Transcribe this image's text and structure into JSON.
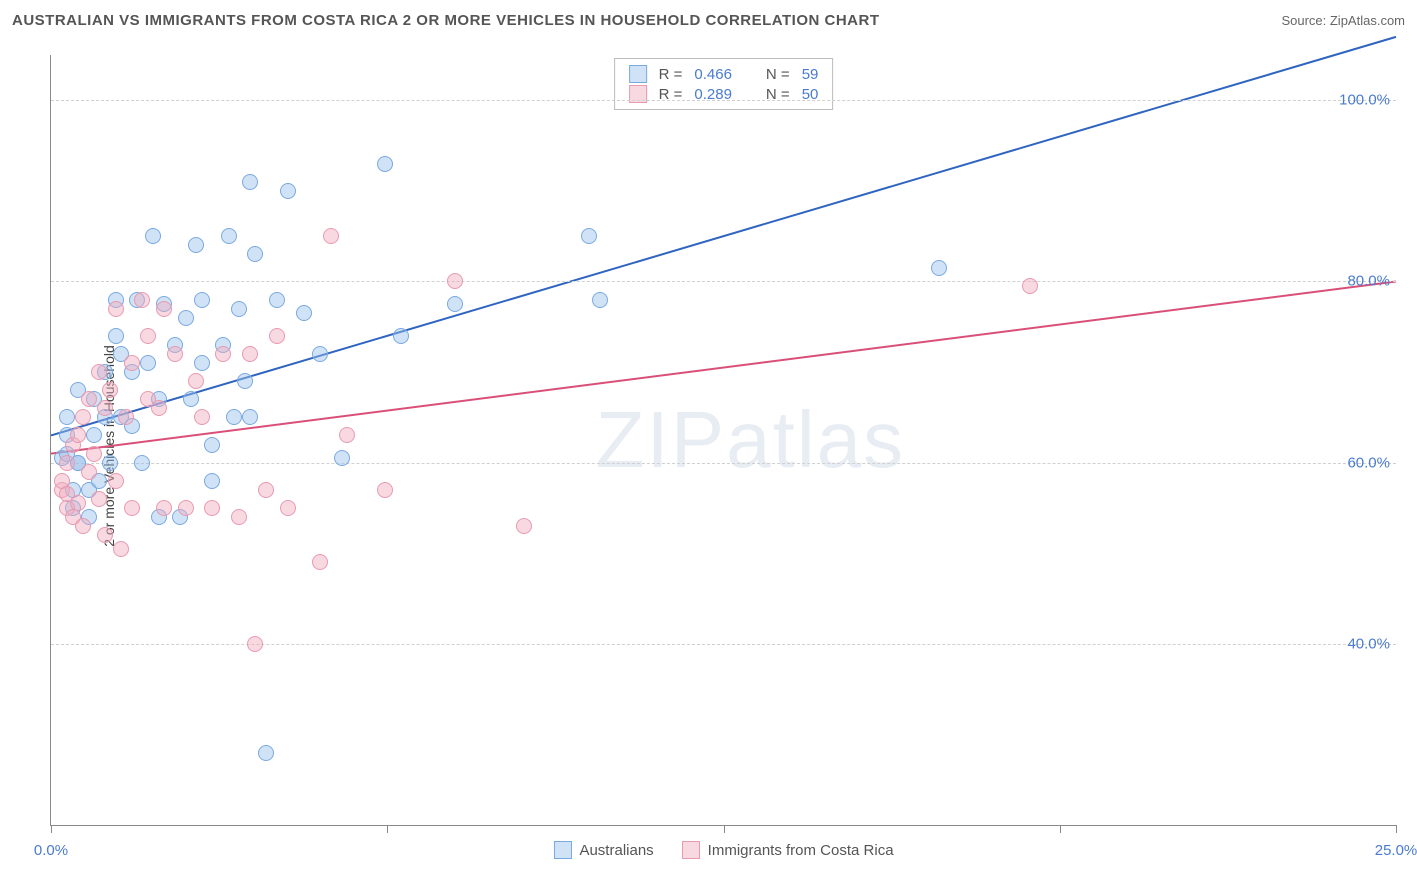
{
  "title": "AUSTRALIAN VS IMMIGRANTS FROM COSTA RICA 2 OR MORE VEHICLES IN HOUSEHOLD CORRELATION CHART",
  "source": "Source: ZipAtlas.com",
  "ylabel": "2 or more Vehicles in Household",
  "watermark": "ZIPatlas",
  "chart": {
    "type": "scatter",
    "xlim": [
      0,
      25
    ],
    "ylim": [
      20,
      105
    ],
    "xticks": [
      {
        "v": 0,
        "label": "0.0%"
      },
      {
        "v": 6.25,
        "label": ""
      },
      {
        "v": 12.5,
        "label": ""
      },
      {
        "v": 18.75,
        "label": ""
      },
      {
        "v": 25,
        "label": "25.0%"
      }
    ],
    "yticks": [
      {
        "v": 40,
        "label": "40.0%"
      },
      {
        "v": 60,
        "label": "60.0%"
      },
      {
        "v": 80,
        "label": "80.0%"
      },
      {
        "v": 100,
        "label": "100.0%"
      }
    ],
    "grid_color": "#d0d0d0",
    "background_color": "#ffffff",
    "marker_radius": 8,
    "marker_stroke_width": 1.5,
    "line_width": 2
  },
  "series": [
    {
      "name": "Australians",
      "legend_label": "Australians",
      "R": "0.466",
      "N": "59",
      "fill": "rgba(150,190,235,0.45)",
      "stroke": "#7aa9e0",
      "line_color": "#2f64c0",
      "trend": {
        "x1": 0,
        "y1": 63,
        "x2": 25,
        "y2": 107
      },
      "points": [
        [
          0.2,
          60.5
        ],
        [
          0.3,
          61
        ],
        [
          0.3,
          63
        ],
        [
          0.3,
          65
        ],
        [
          0.4,
          55
        ],
        [
          0.4,
          57
        ],
        [
          0.5,
          60
        ],
        [
          0.5,
          60
        ],
        [
          0.5,
          68
        ],
        [
          0.7,
          54
        ],
        [
          0.7,
          57
        ],
        [
          0.8,
          63
        ],
        [
          0.8,
          67
        ],
        [
          0.9,
          58
        ],
        [
          1.0,
          65
        ],
        [
          1.0,
          70
        ],
        [
          1.1,
          60
        ],
        [
          1.2,
          74
        ],
        [
          1.2,
          78
        ],
        [
          1.3,
          72
        ],
        [
          1.3,
          65
        ],
        [
          1.5,
          70
        ],
        [
          1.5,
          64
        ],
        [
          1.6,
          78
        ],
        [
          1.7,
          60
        ],
        [
          1.8,
          71
        ],
        [
          1.9,
          85
        ],
        [
          2.0,
          54
        ],
        [
          2.0,
          67
        ],
        [
          2.1,
          77.5
        ],
        [
          2.3,
          73
        ],
        [
          2.4,
          54
        ],
        [
          2.5,
          76
        ],
        [
          2.6,
          67
        ],
        [
          2.7,
          84
        ],
        [
          2.8,
          78
        ],
        [
          2.8,
          71
        ],
        [
          3.0,
          62
        ],
        [
          3.0,
          58
        ],
        [
          3.2,
          73
        ],
        [
          3.3,
          85
        ],
        [
          3.4,
          65
        ],
        [
          3.5,
          77
        ],
        [
          3.6,
          69
        ],
        [
          3.7,
          91
        ],
        [
          3.7,
          65
        ],
        [
          3.8,
          83
        ],
        [
          4.0,
          28
        ],
        [
          4.2,
          78
        ],
        [
          4.4,
          90
        ],
        [
          4.7,
          76.5
        ],
        [
          5.0,
          72
        ],
        [
          5.4,
          60.5
        ],
        [
          6.2,
          93
        ],
        [
          6.5,
          74
        ],
        [
          7.5,
          77.5
        ],
        [
          10.0,
          85
        ],
        [
          10.2,
          78
        ],
        [
          16.5,
          81.5
        ]
      ]
    },
    {
      "name": "Immigrants from Costa Rica",
      "legend_label": "Immigrants from Costa Rica",
      "R": "0.289",
      "N": "50",
      "fill": "rgba(240,170,190,0.45)",
      "stroke": "#e89ab0",
      "line_color": "#d94f78",
      "trend": {
        "x1": 0,
        "y1": 61,
        "x2": 25,
        "y2": 80
      },
      "points": [
        [
          0.2,
          57
        ],
        [
          0.2,
          58
        ],
        [
          0.3,
          55
        ],
        [
          0.3,
          56.5
        ],
        [
          0.3,
          60
        ],
        [
          0.4,
          54
        ],
        [
          0.4,
          62
        ],
        [
          0.5,
          55.5
        ],
        [
          0.5,
          63
        ],
        [
          0.6,
          53
        ],
        [
          0.6,
          65
        ],
        [
          0.7,
          59
        ],
        [
          0.7,
          67
        ],
        [
          0.8,
          61
        ],
        [
          0.9,
          56
        ],
        [
          0.9,
          70
        ],
        [
          1.0,
          52
        ],
        [
          1.0,
          66
        ],
        [
          1.1,
          68
        ],
        [
          1.2,
          58
        ],
        [
          1.2,
          77
        ],
        [
          1.3,
          50.5
        ],
        [
          1.4,
          65
        ],
        [
          1.5,
          55
        ],
        [
          1.5,
          71
        ],
        [
          1.7,
          78
        ],
        [
          1.8,
          67
        ],
        [
          1.8,
          74
        ],
        [
          2.0,
          66
        ],
        [
          2.1,
          55
        ],
        [
          2.1,
          77
        ],
        [
          2.3,
          72
        ],
        [
          2.5,
          55
        ],
        [
          2.7,
          69
        ],
        [
          2.8,
          65
        ],
        [
          3.0,
          55
        ],
        [
          3.2,
          72
        ],
        [
          3.5,
          54
        ],
        [
          3.7,
          72
        ],
        [
          3.8,
          40
        ],
        [
          4.0,
          57
        ],
        [
          4.2,
          74
        ],
        [
          4.4,
          55
        ],
        [
          5.0,
          49
        ],
        [
          5.2,
          85
        ],
        [
          5.5,
          63
        ],
        [
          6.2,
          57
        ],
        [
          7.5,
          80
        ],
        [
          8.8,
          53
        ],
        [
          18.2,
          79.5
        ]
      ]
    }
  ],
  "legend_top": {
    "r_prefix": "R =",
    "n_prefix": "N ="
  }
}
